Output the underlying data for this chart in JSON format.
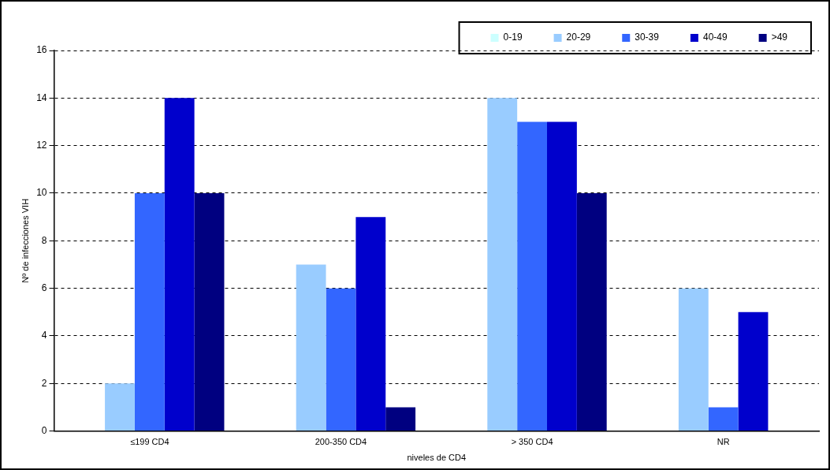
{
  "chart_data": {
    "type": "bar",
    "xlabel": "niveles de CD4",
    "ylabel": "Nº de infecciones VIH",
    "categories": [
      "≤199 CD4",
      "200-350 CD4",
      "> 350 CD4",
      "NR"
    ],
    "series": [
      {
        "name": "0-19",
        "color": "#ccffff",
        "values": [
          0,
          0,
          0,
          0
        ]
      },
      {
        "name": "20-29",
        "color": "#99ccff",
        "values": [
          2,
          7,
          14,
          6
        ]
      },
      {
        "name": "30-39",
        "color": "#3366ff",
        "values": [
          10,
          6,
          13,
          1
        ]
      },
      {
        "name": "40-49",
        "color": "#0000cc",
        "values": [
          14,
          9,
          13,
          5
        ]
      },
      {
        "name": ">49",
        "color": "#000080",
        "values": [
          10,
          1,
          10,
          0
        ]
      }
    ],
    "ylim": [
      0,
      16
    ],
    "yticks": [
      0,
      2,
      4,
      6,
      8,
      10,
      12,
      14,
      16
    ],
    "grid": "y",
    "legend": "top right"
  }
}
